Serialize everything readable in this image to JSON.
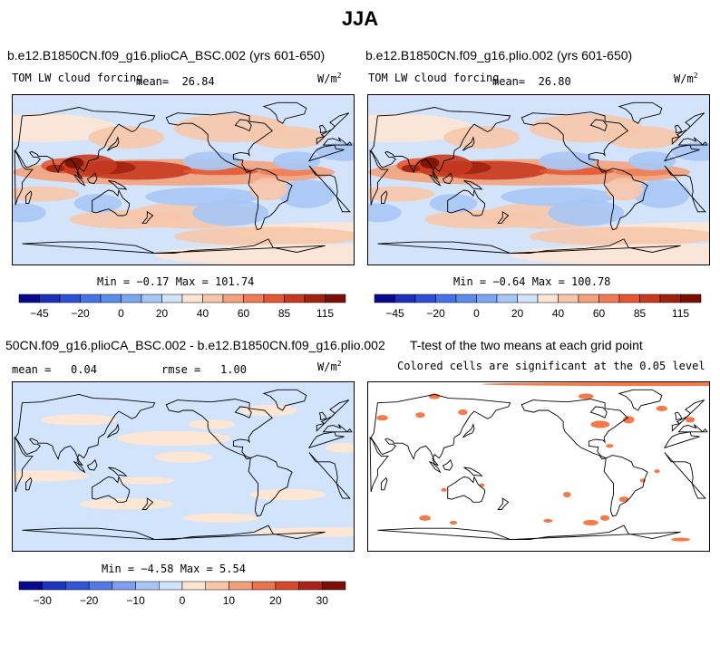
{
  "page": {
    "title": "JJA"
  },
  "panels": [
    {
      "title": "b.e12.B1850CN.f09_g16.plioCA_BSC.002 (yrs 601-650)",
      "variable": "TOM LW cloud forcing",
      "mean_label": "mean=",
      "mean_value": "26.84",
      "units_base": "W/m",
      "units_exp": "2",
      "minmax": "Min =  −0.17 Max = 101.74"
    },
    {
      "title": "b.e12.B1850CN.f09_g16.plio.002 (yrs 601-650)",
      "variable": "TOM LW cloud forcing",
      "mean_label": "mean=",
      "mean_value": "26.80",
      "units_base": "W/m",
      "units_exp": "2",
      "minmax": "Min =  −0.64 Max = 100.78"
    },
    {
      "title": "50CN.f09_g16.plioCA_BSC.002 - b.e12.B1850CN.f09_g16.plio.002",
      "mean_label": "mean =",
      "mean_value": "0.04",
      "rmse_label": "rmse =",
      "rmse_value": "1.00",
      "units_base": "W/m",
      "units_exp": "2",
      "minmax": "Min =  −4.58 Max =   5.54"
    },
    {
      "title": "T-test of the two means at each grid point",
      "subtitle": "Colored cells are significant at the 0.05 level"
    }
  ],
  "colors": {
    "full_scale": [
      "#08088c",
      "#1b2fb8",
      "#2e50d6",
      "#4572e4",
      "#5b8ee9",
      "#7aa7ef",
      "#a7c6f4",
      "#d3e3fa",
      "#fde6d4",
      "#f7c7aa",
      "#f2a37e",
      "#ee7d55",
      "#e35833",
      "#c63a20",
      "#9f220f",
      "#7a0f05"
    ],
    "diff_scale": [
      "#08088c",
      "#1c36bf",
      "#3056d6",
      "#5478e6",
      "#7ea0ee",
      "#a9c4f5",
      "#d2e4fb",
      "#fde6d4",
      "#f8c6a8",
      "#f1a07c",
      "#e9744d",
      "#d44a2a",
      "#a82418",
      "#7a0f05"
    ],
    "ttest_fill": "#f47a4a"
  },
  "chart_data": [
    {
      "type": "heatmap",
      "title": "b.e12.B1850CN.f09_g16.plioCA_BSC.002 (yrs 601-650)",
      "variable": "TOM LW cloud forcing",
      "units": "W/m^2",
      "mean": 26.84,
      "min": -0.17,
      "max": 101.74,
      "colorbar_ticks": [
        -45,
        -20,
        0,
        20,
        40,
        60,
        85,
        115
      ],
      "colorbar_tick_labels": [
        "−45",
        "−20",
        "0",
        "20",
        "40",
        "60",
        "85",
        "115"
      ]
    },
    {
      "type": "heatmap",
      "title": "b.e12.B1850CN.f09_g16.plio.002 (yrs 601-650)",
      "variable": "TOM LW cloud forcing",
      "units": "W/m^2",
      "mean": 26.8,
      "min": -0.64,
      "max": 100.78,
      "colorbar_ticks": [
        -45,
        -20,
        0,
        20,
        40,
        60,
        85,
        115
      ],
      "colorbar_tick_labels": [
        "−45",
        "−20",
        "0",
        "20",
        "40",
        "60",
        "85",
        "115"
      ]
    },
    {
      "type": "heatmap",
      "title": "50CN.f09_g16.plioCA_BSC.002 - b.e12.B1850CN.f09_g16.plio.002",
      "units": "W/m^2",
      "mean": 0.04,
      "rmse": 1.0,
      "min": -4.58,
      "max": 5.54,
      "colorbar_ticks": [
        -30,
        -20,
        -10,
        0,
        10,
        20,
        30
      ],
      "colorbar_tick_labels": [
        "−30",
        "−20",
        "−10",
        "0",
        "10",
        "20",
        "30"
      ]
    },
    {
      "type": "heatmap",
      "title": "T-test of the two means at each grid point",
      "subtitle": "Colored cells are significant at the 0.05 level",
      "significance_level": 0.05
    }
  ]
}
